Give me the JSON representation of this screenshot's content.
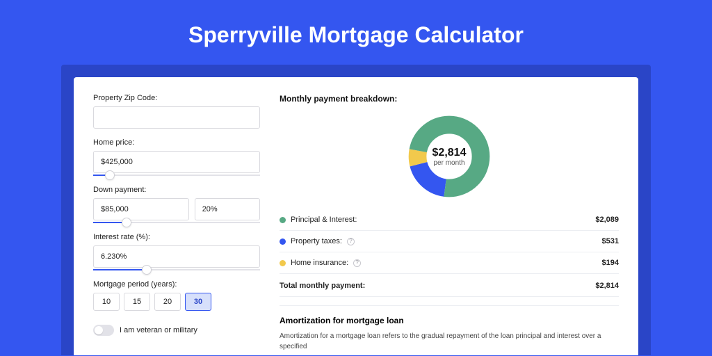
{
  "title": "Sperryville Mortgage Calculator",
  "colors": {
    "page_bg": "#3456f0",
    "outer_card_bg": "#2a45c7",
    "card_bg": "#ffffff",
    "title_color": "#ffffff",
    "border": "#d9d9de",
    "slider_fill": "#3456f0",
    "text": "#222222"
  },
  "form": {
    "zip": {
      "label": "Property Zip Code:",
      "value": ""
    },
    "price": {
      "label": "Home price:",
      "value": "$425,000",
      "slider_pct": 10
    },
    "down": {
      "label": "Down payment:",
      "value": "$85,000",
      "pct": "20%",
      "slider_pct": 20
    },
    "rate": {
      "label": "Interest rate (%):",
      "value": "6.230%",
      "slider_pct": 32
    },
    "period": {
      "label": "Mortgage period (years):",
      "options": [
        "10",
        "15",
        "20",
        "30"
      ],
      "selected": "30"
    },
    "veteran": {
      "label": "I am veteran or military",
      "on": false
    }
  },
  "breakdown": {
    "heading": "Monthly payment breakdown:",
    "donut": {
      "amount": "$2,814",
      "sub": "per month",
      "segments": [
        {
          "key": "pi",
          "label": "Principal & Interest:",
          "value": "$2,089",
          "pct": 74.2,
          "color": "#57a984"
        },
        {
          "key": "tax",
          "label": "Property taxes:",
          "value": "$531",
          "pct": 18.9,
          "color": "#3456f0",
          "info": true
        },
        {
          "key": "ins",
          "label": "Home insurance:",
          "value": "$194",
          "pct": 6.9,
          "color": "#f2c94c",
          "info": true
        }
      ]
    },
    "total": {
      "label": "Total monthly payment:",
      "value": "$2,814"
    }
  },
  "amort": {
    "title": "Amortization for mortgage loan",
    "text": "Amortization for a mortgage loan refers to the gradual repayment of the loan principal and interest over a specified"
  },
  "typography": {
    "title_fontsize": 32,
    "label_fontsize": 11,
    "heading_fontsize": 12,
    "donut_amount_fontsize": 16
  }
}
